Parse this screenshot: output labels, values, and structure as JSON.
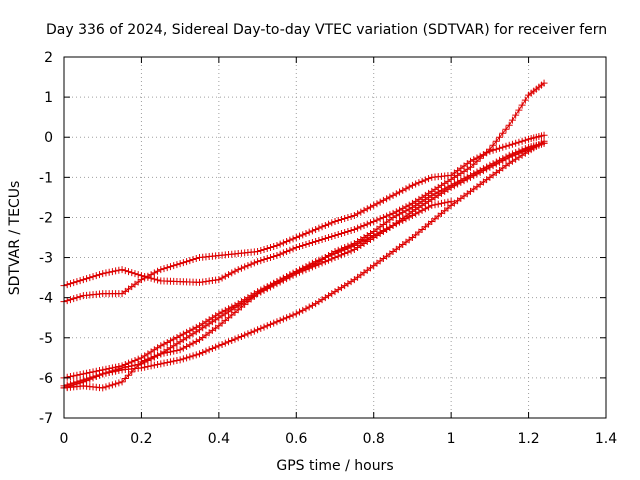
{
  "chart_data": {
    "type": "line",
    "title": "Day 336 of 2024, Sidereal Day-to-day VTEC variation (SDTVAR) for receiver fern",
    "xlabel": "GPS time / hours",
    "ylabel": "SDTVAR / TECUs",
    "xlim": [
      0,
      1.4
    ],
    "ylim": [
      -7,
      2
    ],
    "xticks": [
      0,
      0.2,
      0.4,
      0.6,
      0.8,
      1,
      1.2,
      1.4
    ],
    "xtick_labels": [
      "0",
      "0.2",
      "0.4",
      "0.6",
      "0.8",
      "1",
      "1.2",
      "1.4"
    ],
    "yticks": [
      -7,
      -6,
      -5,
      -4,
      -3,
      -2,
      -1,
      0,
      1,
      2
    ],
    "ytick_labels": [
      "-7",
      "-6",
      "-5",
      "-4",
      "-3",
      "-2",
      "-1",
      "0",
      "1",
      "2"
    ],
    "grid": true,
    "marker": "plus",
    "series_color": "#dd0000",
    "series": [
      {
        "name": "series-1",
        "x": [
          0,
          0.05,
          0.1,
          0.15,
          0.2,
          0.25,
          0.3,
          0.35,
          0.4,
          0.45,
          0.5,
          0.55,
          0.6,
          0.65,
          0.7,
          0.75,
          0.8,
          0.85,
          0.9,
          0.95,
          1.0,
          1.05,
          1.1,
          1.15,
          1.2,
          1.24
        ],
        "values": [
          -3.7,
          -3.55,
          -3.4,
          -3.3,
          -3.45,
          -3.58,
          -3.6,
          -3.62,
          -3.55,
          -3.3,
          -3.1,
          -2.95,
          -2.75,
          -2.6,
          -2.45,
          -2.3,
          -2.1,
          -1.9,
          -1.65,
          -1.35,
          -1.05,
          -0.75,
          -0.3,
          0.3,
          1.05,
          1.35
        ]
      },
      {
        "name": "series-2",
        "x": [
          0,
          0.05,
          0.1,
          0.15,
          0.2,
          0.25,
          0.3,
          0.35,
          0.4,
          0.45,
          0.5,
          0.55,
          0.6,
          0.65,
          0.7,
          0.75,
          0.8,
          0.85,
          0.9,
          0.95,
          1.0,
          1.05,
          1.1,
          1.15,
          1.2,
          1.24
        ],
        "values": [
          -4.1,
          -3.95,
          -3.9,
          -3.9,
          -3.55,
          -3.3,
          -3.15,
          -3.0,
          -2.95,
          -2.9,
          -2.85,
          -2.7,
          -2.5,
          -2.3,
          -2.1,
          -1.95,
          -1.7,
          -1.45,
          -1.2,
          -1.0,
          -0.95,
          -0.6,
          -0.35,
          -0.2,
          -0.05,
          0.05
        ]
      },
      {
        "name": "series-3",
        "x": [
          0,
          0.05,
          0.1,
          0.15,
          0.2,
          0.25,
          0.3,
          0.35,
          0.4,
          0.45,
          0.5,
          0.55,
          0.6,
          0.65,
          0.7,
          0.75,
          0.8,
          0.85,
          0.9,
          0.95,
          1.0,
          1.05,
          1.1,
          1.15,
          1.2,
          1.24
        ],
        "values": [
          -6.0,
          -5.9,
          -5.8,
          -5.7,
          -5.5,
          -5.2,
          -4.95,
          -4.7,
          -4.4,
          -4.15,
          -3.85,
          -3.6,
          -3.35,
          -3.15,
          -2.85,
          -2.65,
          -2.35,
          -2.0,
          -1.75,
          -1.45,
          -1.2,
          -0.95,
          -0.7,
          -0.45,
          -0.25,
          -0.15
        ]
      },
      {
        "name": "series-4",
        "x": [
          0,
          0.05,
          0.1,
          0.15,
          0.2,
          0.25,
          0.3,
          0.35,
          0.4,
          0.45,
          0.5,
          0.55,
          0.6,
          0.65,
          0.7,
          0.75,
          0.8,
          0.85,
          0.9,
          0.95,
          1.0,
          1.05,
          1.1,
          1.15,
          1.2,
          1.24
        ],
        "values": [
          -6.2,
          -6.05,
          -5.9,
          -5.75,
          -5.65,
          -5.4,
          -5.1,
          -4.8,
          -4.5,
          -4.2,
          -3.9,
          -3.65,
          -3.4,
          -3.2,
          -3.0,
          -2.8,
          -2.5,
          -2.2,
          -1.85,
          -1.55,
          -1.25,
          -1.0,
          -0.75,
          -0.5,
          -0.3,
          -0.15
        ]
      },
      {
        "name": "series-5",
        "x": [
          0,
          0.05,
          0.1,
          0.15,
          0.2,
          0.25,
          0.3,
          0.35,
          0.4,
          0.45,
          0.5,
          0.55,
          0.6,
          0.65,
          0.7,
          0.75,
          0.8,
          0.85,
          0.9,
          0.95,
          1.0
        ],
        "values": [
          -6.25,
          -6.2,
          -6.25,
          -6.1,
          -5.6,
          -5.4,
          -5.3,
          -5.05,
          -4.7,
          -4.3,
          -3.9,
          -3.6,
          -3.35,
          -3.1,
          -2.9,
          -2.7,
          -2.45,
          -2.2,
          -1.95,
          -1.7,
          -1.6
        ]
      },
      {
        "name": "series-6",
        "x": [
          0,
          0.05,
          0.1,
          0.15,
          0.2,
          0.25,
          0.3,
          0.35,
          0.4,
          0.45,
          0.5,
          0.55,
          0.6,
          0.65,
          0.7,
          0.75,
          0.8,
          0.85,
          0.9,
          0.95,
          1.0,
          1.05,
          1.1,
          1.15,
          1.2,
          1.24
        ],
        "values": [
          -6.25,
          -6.1,
          -5.9,
          -5.8,
          -5.75,
          -5.65,
          -5.55,
          -5.4,
          -5.2,
          -5.0,
          -4.8,
          -4.6,
          -4.4,
          -4.15,
          -3.85,
          -3.55,
          -3.2,
          -2.85,
          -2.5,
          -2.1,
          -1.7,
          -1.35,
          -1.0,
          -0.65,
          -0.35,
          -0.1
        ]
      }
    ]
  }
}
